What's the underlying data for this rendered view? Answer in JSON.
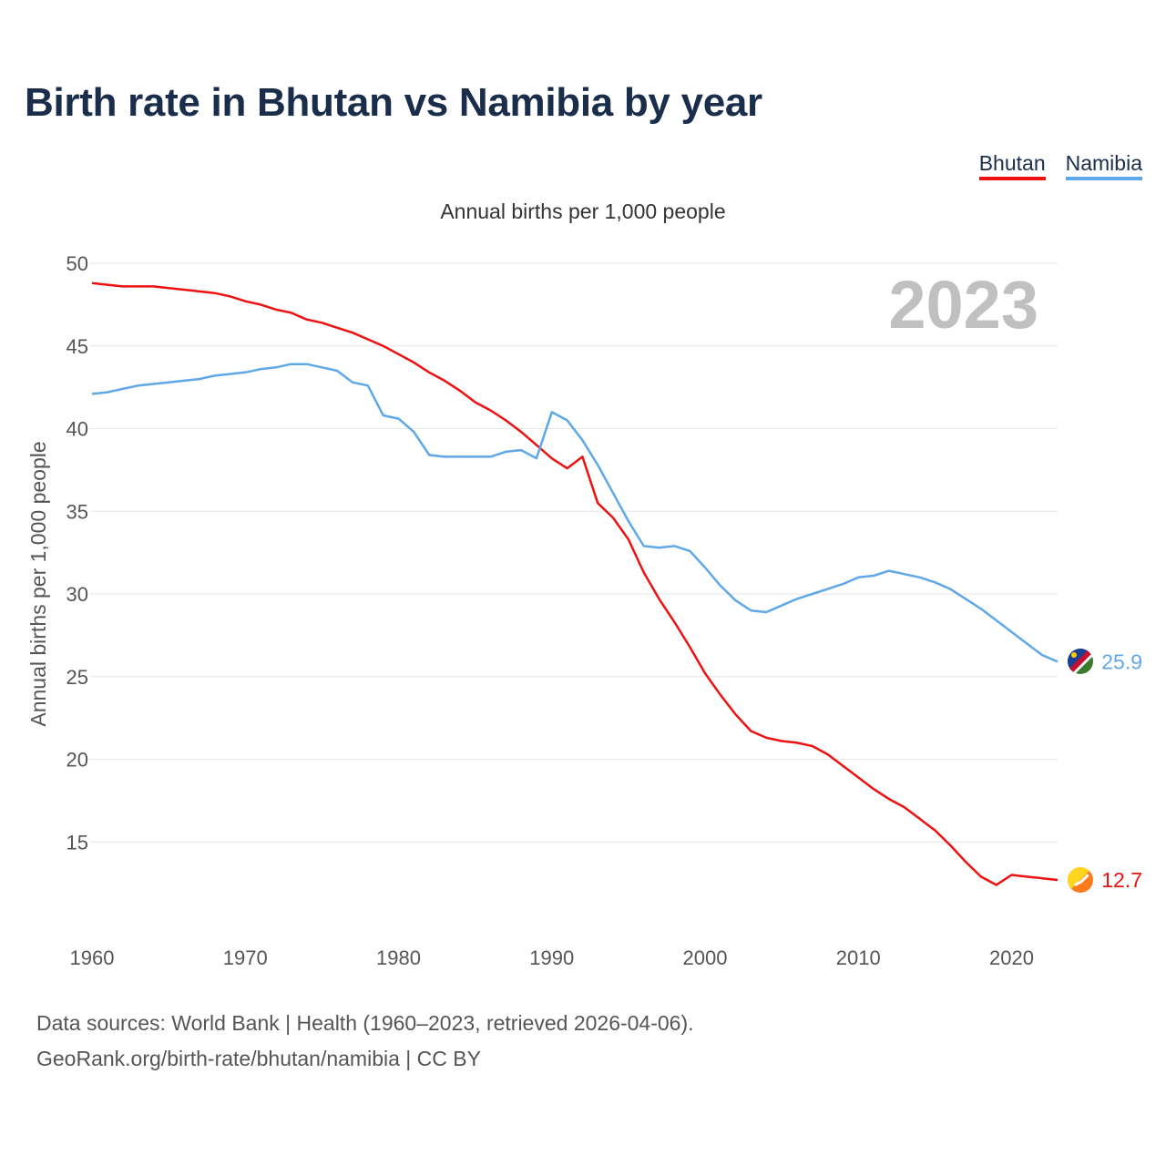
{
  "header": {
    "title": "Birth rate in Bhutan vs Namibia by year"
  },
  "legend": {
    "items": [
      {
        "label": "Bhutan",
        "color": "#ee1111"
      },
      {
        "label": "Namibia",
        "color": "#5fa8e8"
      }
    ]
  },
  "footer": {
    "line1": "Data sources: World Bank | Health (1960–2023, retrieved 2026-04-06).",
    "line2": "GeoRank.org/birth-rate/bhutan/namibia | CC BY"
  },
  "chart_data": {
    "type": "line",
    "title": "Annual births per 1,000 people",
    "ylabel": "Annual births per 1,000 people",
    "xlabel": "",
    "year_watermark": "2023",
    "ylim": [
      10,
      50
    ],
    "xlim": [
      1960,
      2023
    ],
    "yticks": [
      15,
      20,
      25,
      30,
      35,
      40,
      45,
      50
    ],
    "xticks": [
      1960,
      1970,
      1980,
      1990,
      2000,
      2010,
      2020
    ],
    "x": [
      1960,
      1961,
      1962,
      1963,
      1964,
      1965,
      1966,
      1967,
      1968,
      1969,
      1970,
      1971,
      1972,
      1973,
      1974,
      1975,
      1976,
      1977,
      1978,
      1979,
      1980,
      1981,
      1982,
      1983,
      1984,
      1985,
      1986,
      1987,
      1988,
      1989,
      1990,
      1991,
      1992,
      1993,
      1994,
      1995,
      1996,
      1997,
      1998,
      1999,
      2000,
      2001,
      2002,
      2003,
      2004,
      2005,
      2006,
      2007,
      2008,
      2009,
      2010,
      2011,
      2012,
      2013,
      2014,
      2015,
      2016,
      2017,
      2018,
      2019,
      2020,
      2021,
      2022,
      2023
    ],
    "series": [
      {
        "name": "Bhutan",
        "color": "#ee1111",
        "end_label": "12.7",
        "values": [
          48.8,
          48.7,
          48.6,
          48.6,
          48.6,
          48.5,
          48.4,
          48.3,
          48.2,
          48.0,
          47.7,
          47.5,
          47.2,
          47.0,
          46.6,
          46.4,
          46.1,
          45.8,
          45.4,
          45.0,
          44.5,
          44.0,
          43.4,
          42.9,
          42.3,
          41.6,
          41.1,
          40.5,
          39.8,
          39.0,
          38.2,
          37.6,
          38.3,
          35.5,
          34.6,
          33.3,
          31.3,
          29.7,
          28.3,
          26.8,
          25.2,
          23.9,
          22.7,
          21.7,
          21.3,
          21.1,
          21.0,
          20.8,
          20.3,
          19.6,
          18.9,
          18.2,
          17.6,
          17.1,
          16.4,
          15.7,
          14.8,
          13.8,
          12.9,
          12.4,
          13.0,
          12.9,
          12.8,
          12.7
        ]
      },
      {
        "name": "Namibia",
        "color": "#5fa8e8",
        "end_label": "25.9",
        "values": [
          42.1,
          42.2,
          42.4,
          42.6,
          42.7,
          42.8,
          42.9,
          43.0,
          43.2,
          43.3,
          43.4,
          43.6,
          43.7,
          43.9,
          43.9,
          43.7,
          43.5,
          42.8,
          42.6,
          40.8,
          40.6,
          39.8,
          38.4,
          38.3,
          38.3,
          38.3,
          38.3,
          38.6,
          38.7,
          38.2,
          41.0,
          40.5,
          39.3,
          37.8,
          36.1,
          34.4,
          32.9,
          32.8,
          32.9,
          32.6,
          31.6,
          30.5,
          29.6,
          29.0,
          28.9,
          29.3,
          29.7,
          30.0,
          30.3,
          30.6,
          31.0,
          31.1,
          31.4,
          31.2,
          31.0,
          30.7,
          30.3,
          29.7,
          29.1,
          28.4,
          27.7,
          27.0,
          26.3,
          25.9
        ]
      }
    ]
  }
}
